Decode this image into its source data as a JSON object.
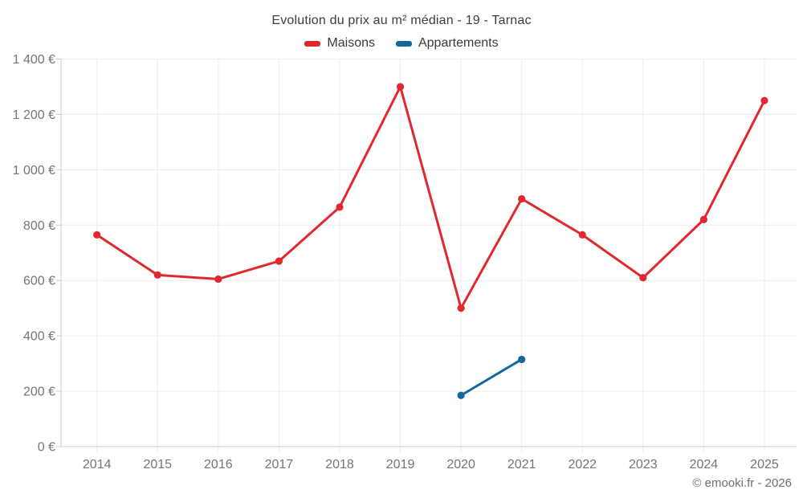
{
  "header": {
    "title": "Evolution du prix au m² médian - 19 - Tarnac"
  },
  "footer": {
    "credit": "© emooki.fr - 2026"
  },
  "chart_data": {
    "type": "line",
    "title": "Evolution du prix au m² médian - 19 - Tarnac",
    "categories": [
      "2014",
      "2015",
      "2016",
      "2017",
      "2018",
      "2019",
      "2020",
      "2021",
      "2022",
      "2023",
      "2024",
      "2025"
    ],
    "series": [
      {
        "name": "Maisons",
        "color": "#e0282e",
        "values": [
          765,
          620,
          605,
          670,
          865,
          1300,
          500,
          895,
          765,
          610,
          820,
          1250
        ]
      },
      {
        "name": "Appartements",
        "color": "#15689e",
        "values": [
          null,
          null,
          null,
          null,
          null,
          null,
          185,
          315,
          null,
          null,
          null,
          null
        ]
      }
    ],
    "xlabel": "",
    "ylabel": "",
    "ylim": [
      0,
      1400
    ],
    "y_tick_values": [
      0,
      200,
      400,
      600,
      800,
      1000,
      1200,
      1400
    ],
    "y_tick_labels": [
      "0 €",
      "200 €",
      "400 €",
      "600 €",
      "800 €",
      "1 000 €",
      "1 200 €",
      "1 400 €"
    ],
    "grid": true,
    "legend_position": "top",
    "grid_color": "#ececec",
    "axis_color": "#cccccc",
    "tick_text_color": "#757575"
  }
}
